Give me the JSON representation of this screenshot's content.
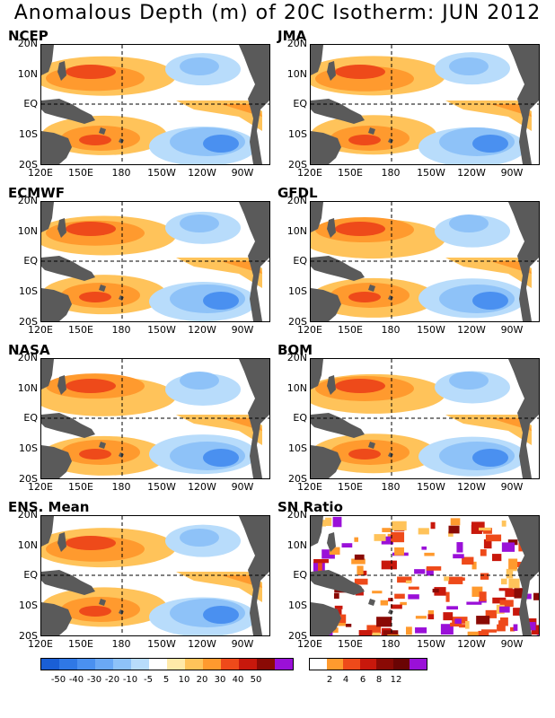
{
  "title": "Anomalous Depth (m) of 20C Isotherm: JUN 2012",
  "lat_labels": [
    "20N",
    "10N",
    "EQ",
    "10S",
    "20S"
  ],
  "lon_labels": [
    "120E",
    "150E",
    "180",
    "150W",
    "120W",
    "90W"
  ],
  "panels": [
    {
      "name": "NCEP",
      "kind": "anom"
    },
    {
      "name": "JMA",
      "kind": "anom"
    },
    {
      "name": "ECMWF",
      "kind": "anom"
    },
    {
      "name": "GFDL",
      "kind": "anom"
    },
    {
      "name": "NASA",
      "kind": "anom"
    },
    {
      "name": "BOM",
      "kind": "anom"
    },
    {
      "name": "ENS. Mean",
      "kind": "anom"
    },
    {
      "name": "SN Ratio",
      "kind": "sn"
    }
  ],
  "anomaly_colorbar": {
    "labels": [
      "-50",
      "-40",
      "-30",
      "-20",
      "-10",
      "-5",
      "5",
      "10",
      "20",
      "30",
      "40",
      "50"
    ],
    "colors": [
      "#1a5fd6",
      "#2f78e6",
      "#4a90f0",
      "#6aa8f5",
      "#8ec2f8",
      "#b8dcfb",
      "#ffffff",
      "#ffe9a8",
      "#ffc35a",
      "#ff9a2e",
      "#ee4a1a",
      "#c8180c",
      "#8a0a05",
      "#9a10d8"
    ]
  },
  "sn_colorbar": {
    "labels": [
      "2",
      "4",
      "6",
      "8",
      "12"
    ],
    "colors": [
      "#ffffff",
      "#ff9a2e",
      "#ee4a1a",
      "#c8180c",
      "#8a0a05",
      "#6a0404",
      "#9a10d8"
    ]
  }
}
